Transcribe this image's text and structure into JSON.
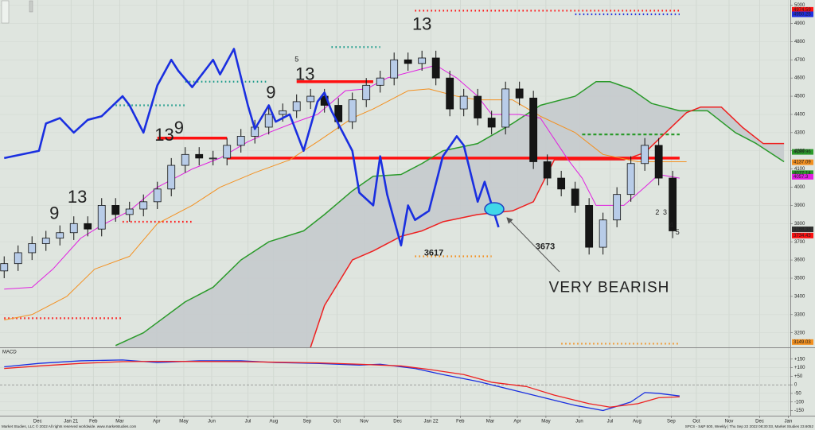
{
  "chart_data": [
    {
      "type": "candlestick",
      "ylim": [
        3120,
        5020
      ],
      "yticks": [
        3200,
        3300,
        3400,
        3500,
        3600,
        3700,
        3800,
        3900,
        4000,
        4100,
        4200,
        4300,
        4400,
        4500,
        4600,
        4700,
        4800,
        4900,
        5000
      ],
      "grid": true,
      "up_color": "#b8cce8",
      "down_color": "#151515",
      "candles": {
        "x": [
          0,
          2,
          4,
          6,
          8,
          10,
          12,
          14,
          16,
          18,
          20,
          22,
          24,
          26,
          28,
          30,
          32,
          34,
          36,
          38,
          40,
          42,
          44,
          46,
          48,
          50,
          52,
          54,
          56,
          58,
          60,
          62,
          64,
          66,
          68,
          70,
          72,
          74,
          76,
          78,
          80,
          82,
          84,
          86,
          88,
          90,
          92,
          94,
          96
        ],
        "open": [
          3540,
          3580,
          3640,
          3690,
          3720,
          3750,
          3800,
          3770,
          3900,
          3850,
          3880,
          3920,
          3990,
          4120,
          4180,
          4160,
          4160,
          4230,
          4280,
          4330,
          4400,
          4420,
          4470,
          4500,
          4450,
          4360,
          4480,
          4560,
          4600,
          4700,
          4680,
          4710,
          4600,
          4430,
          4500,
          4380,
          4330,
          4540,
          4490,
          4140,
          4050,
          3990,
          3900,
          3670,
          3820,
          3960,
          4130,
          4230,
          4050
        ],
        "high": [
          3620,
          3680,
          3730,
          3760,
          3790,
          3840,
          3840,
          3940,
          3940,
          3920,
          3960,
          4030,
          4160,
          4220,
          4220,
          4200,
          4270,
          4320,
          4370,
          4440,
          4460,
          4510,
          4540,
          4540,
          4490,
          4520,
          4600,
          4640,
          4740,
          4740,
          4750,
          4750,
          4640,
          4540,
          4540,
          4420,
          4580,
          4580,
          4530,
          4180,
          4090,
          4030,
          3940,
          3860,
          4000,
          4170,
          4270,
          4270,
          4090
        ],
        "low": [
          3500,
          3540,
          3600,
          3650,
          3680,
          3710,
          3730,
          3730,
          3810,
          3810,
          3840,
          3880,
          3950,
          4080,
          4120,
          4120,
          4120,
          4190,
          4240,
          4290,
          4360,
          4380,
          4430,
          4410,
          4320,
          4320,
          4440,
          4520,
          4560,
          4640,
          4640,
          4560,
          4390,
          4390,
          4340,
          4290,
          4290,
          4450,
          4100,
          4010,
          3950,
          3860,
          3630,
          3630,
          3780,
          3920,
          4090,
          4010,
          3720
        ],
        "close": [
          3580,
          3640,
          3690,
          3720,
          3750,
          3800,
          3770,
          3900,
          3850,
          3880,
          3920,
          3990,
          4120,
          4180,
          4160,
          4160,
          4230,
          4280,
          4330,
          4400,
          4420,
          4470,
          4500,
          4450,
          4360,
          4480,
          4560,
          4600,
          4700,
          4680,
          4710,
          4600,
          4430,
          4500,
          4380,
          4330,
          4540,
          4490,
          4140,
          4050,
          3990,
          3900,
          3670,
          3820,
          3960,
          4130,
          4230,
          4050,
          3760
        ]
      },
      "series": [
        {
          "color": "#1a2fe0",
          "width": "thick",
          "x": [
            0,
            5,
            6,
            8,
            10,
            12,
            14,
            17,
            18,
            20,
            22,
            24,
            25,
            27,
            30,
            31,
            33,
            35,
            36,
            38,
            39,
            41,
            43,
            45,
            46,
            47,
            50,
            51,
            53,
            54,
            55,
            57,
            58,
            59,
            61,
            63,
            65,
            66,
            68,
            69,
            71
          ],
          "values": [
            4160,
            4200,
            4350,
            4380,
            4300,
            4370,
            4390,
            4500,
            4450,
            4300,
            4560,
            4700,
            4640,
            4550,
            4700,
            4620,
            4760,
            4450,
            4320,
            4450,
            4360,
            4400,
            4200,
            4470,
            4520,
            4420,
            4200,
            3970,
            3900,
            4170,
            3960,
            3680,
            3900,
            3820,
            3870,
            4170,
            4280,
            4230,
            3920,
            4030,
            3780
          ]
        },
        {
          "color": "#2a9a2a",
          "width": "normal",
          "x": [
            16,
            20,
            26,
            30,
            34,
            38,
            43,
            46,
            50,
            53,
            57,
            60,
            63,
            68,
            73,
            77,
            82,
            85,
            87,
            90,
            93,
            97,
            101,
            105,
            108,
            112
          ],
          "values": [
            3130,
            3200,
            3370,
            3450,
            3600,
            3700,
            3760,
            3850,
            3980,
            4060,
            4070,
            4130,
            4200,
            4240,
            4350,
            4450,
            4500,
            4580,
            4580,
            4540,
            4460,
            4420,
            4420,
            4300,
            4240,
            4140
          ]
        },
        {
          "color": "#ee2020",
          "width": "normal",
          "x": [
            44,
            46,
            50,
            53,
            57,
            60,
            63,
            68,
            73,
            76,
            79,
            84,
            89,
            92,
            95,
            98,
            100,
            103,
            106,
            109,
            112
          ],
          "values": [
            3120,
            3350,
            3600,
            3650,
            3730,
            3760,
            3810,
            3850,
            3870,
            3920,
            4150,
            4150,
            4150,
            4190,
            4300,
            4410,
            4440,
            4440,
            4330,
            4240,
            4240
          ]
        },
        {
          "color": "#f39020",
          "width": "thin",
          "x": [
            0,
            4,
            9,
            13,
            18,
            22,
            27,
            31,
            36,
            41,
            45,
            50,
            53,
            58,
            61,
            65,
            68,
            73,
            77,
            82,
            86,
            91,
            95,
            98
          ],
          "values": [
            3270,
            3300,
            3400,
            3550,
            3620,
            3800,
            3900,
            4000,
            4080,
            4150,
            4250,
            4380,
            4430,
            4530,
            4540,
            4500,
            4480,
            4480,
            4390,
            4300,
            4180,
            4140,
            4140,
            4140
          ]
        },
        {
          "color": "#e020e0",
          "width": "thin",
          "x": [
            0,
            4,
            7,
            11,
            14,
            18,
            22,
            27,
            31,
            35,
            38,
            42,
            45,
            49,
            52,
            55,
            59,
            62,
            65,
            68,
            70,
            74,
            77,
            81,
            83,
            85,
            89,
            92,
            94,
            97
          ],
          "values": [
            3440,
            3450,
            3550,
            3720,
            3790,
            3870,
            4000,
            4100,
            4160,
            4250,
            4300,
            4360,
            4400,
            4530,
            4540,
            4600,
            4640,
            4670,
            4600,
            4500,
            4400,
            4400,
            4380,
            4150,
            4050,
            3900,
            3900,
            4000,
            4070,
            4050
          ]
        }
      ],
      "fill_between": [
        1,
        2
      ],
      "fill_color": "#c4c9cc",
      "levels": [
        {
          "value": 4160,
          "x": [
            32,
            97
          ],
          "color": "#ff1010",
          "style": "solid"
        },
        {
          "value": 4580,
          "x": [
            42,
            53
          ],
          "color": "#ff1010",
          "style": "solid"
        },
        {
          "value": 4270,
          "x": [
            22,
            32
          ],
          "color": "#ff1010",
          "style": "solid"
        },
        {
          "value": 3280,
          "x": [
            0,
            17
          ],
          "color": "#ff1010",
          "style": "dotted"
        },
        {
          "value": 3810,
          "x": [
            17,
            27
          ],
          "color": "#ff1010",
          "style": "dotted"
        },
        {
          "value": 4970,
          "x": [
            59,
            97
          ],
          "color": "#ff1010",
          "style": "dotted"
        },
        {
          "value": 4950,
          "x": [
            82,
            97
          ],
          "color": "#2030e0",
          "style": "dotted"
        },
        {
          "value": 4450,
          "x": [
            16,
            26
          ],
          "color": "#1a9a8a",
          "style": "dotted"
        },
        {
          "value": 4580,
          "x": [
            26,
            38
          ],
          "color": "#1a9a8a",
          "style": "dotted"
        },
        {
          "value": 4770,
          "x": [
            47,
            54
          ],
          "color": "#1a9a8a",
          "style": "dotted"
        },
        {
          "value": 3620,
          "x": [
            59,
            70
          ],
          "color": "#f39020",
          "style": "dotted"
        },
        {
          "value": 3140,
          "x": [
            80,
            97
          ],
          "color": "#f39020",
          "style": "dotted"
        },
        {
          "value": 4290,
          "x": [
            83,
            97
          ],
          "color": "#2a9a2a",
          "style": "dashed"
        }
      ],
      "annotations": [
        {
          "text": "13",
          "x": 10.5,
          "y": 3940,
          "color": "#ff1010",
          "size": "large"
        },
        {
          "text": "13",
          "x": 23,
          "y": 4280,
          "color": "#ff1010",
          "size": "large"
        },
        {
          "text": "13",
          "x": 43.2,
          "y": 4615,
          "color": "#ff1010",
          "size": "large"
        },
        {
          "text": "13",
          "x": 60,
          "y": 4890,
          "color": "#ff1010",
          "size": "large"
        },
        {
          "text": "9",
          "x": 7.2,
          "y": 3850,
          "color": "#1a2fe0",
          "size": "large"
        },
        {
          "text": "9",
          "x": 25.1,
          "y": 4320,
          "color": "#1a2fe0",
          "size": "large"
        },
        {
          "text": "9",
          "x": 38.3,
          "y": 4515,
          "color": "#1a2fe0",
          "size": "large"
        },
        {
          "text": "5",
          "x": 42,
          "y": 4700,
          "color": "#ff1010",
          "size": "small"
        },
        {
          "text": "2",
          "x": 93.8,
          "y": 3860,
          "color": "#1a2fe0",
          "size": "small"
        },
        {
          "text": "3",
          "x": 94.9,
          "y": 3860,
          "color": "#1a2fe0",
          "size": "small"
        },
        {
          "text": "4",
          "x": 95.8,
          "y": 3790,
          "color": "#1a2fe0",
          "size": "small"
        },
        {
          "text": "5",
          "x": 96.7,
          "y": 3750,
          "color": "#1a2fe0",
          "size": "small"
        },
        {
          "text": "3617",
          "x": 61.7,
          "y": 3637,
          "color": "#f39020",
          "size": "medium"
        },
        {
          "text": "3673",
          "x": 77.7,
          "y": 3672,
          "color": "#e01010",
          "size": "medium"
        },
        {
          "text": "VERY BEARISH",
          "x": 86.9,
          "y": 3445,
          "color": "#1a2fe0",
          "size": "huge"
        }
      ],
      "price_labels": [
        {
          "value": 4974.59,
          "label": "4974.59",
          "color": "#ff1010"
        },
        {
          "value": 4950.25,
          "label": "4950.25",
          "color": "#2030e0"
        },
        {
          "value": 4193.96,
          "label": "4193.96",
          "color": "#2a9a2a"
        },
        {
          "value": 4137.09,
          "label": "4137.09",
          "color": "#f39020"
        },
        {
          "value": 4077.14,
          "label": "4077.14",
          "color": "#2a9a2a"
        },
        {
          "value": 4057.3,
          "label": "4057.3",
          "color": "#e020e0"
        },
        {
          "value": 3768.38,
          "label": "3768.38",
          "color": "#303030"
        },
        {
          "value": 3734.43,
          "label": "3734.43",
          "color": "#ff1010"
        },
        {
          "value": 3149.03,
          "label": "3149.03",
          "color": "#f39020"
        }
      ]
    },
    {
      "type": "line",
      "title": "MACD",
      "xlim": [
        -0.6,
        112.9
      ],
      "xticks": [
        {
          "value": 4.8,
          "label": "Dec"
        },
        {
          "value": 9.6,
          "label": "Jan 21"
        },
        {
          "value": 12.8,
          "label": "Feb"
        },
        {
          "value": 16.6,
          "label": "Mar"
        },
        {
          "value": 21.9,
          "label": "Apr"
        },
        {
          "value": 25.8,
          "label": "May"
        },
        {
          "value": 29.8,
          "label": "Jun"
        },
        {
          "value": 35,
          "label": "Jul"
        },
        {
          "value": 38.7,
          "label": "Aug"
        },
        {
          "value": 43.5,
          "label": "Sep"
        },
        {
          "value": 47.8,
          "label": "Oct"
        },
        {
          "value": 51.7,
          "label": "Nov"
        },
        {
          "value": 56.5,
          "label": "Dec"
        },
        {
          "value": 61.3,
          "label": "Jan 22"
        },
        {
          "value": 65.5,
          "label": "Feb"
        },
        {
          "value": 69.8,
          "label": "Mar"
        },
        {
          "value": 73.7,
          "label": "Apr"
        },
        {
          "value": 77.8,
          "label": "May"
        },
        {
          "value": 82.6,
          "label": "Jun"
        },
        {
          "value": 87,
          "label": "Jul"
        },
        {
          "value": 90.9,
          "label": "Aug"
        },
        {
          "value": 95.8,
          "label": "Sep"
        },
        {
          "value": 99.4,
          "label": "Oct"
        },
        {
          "value": 104.1,
          "label": "Nov"
        },
        {
          "value": 108.5,
          "label": "Dec"
        },
        {
          "value": 112.6,
          "label": "Jan"
        }
      ],
      "ylim": [
        -180,
        200
      ],
      "yticks": [
        {
          "value": 150,
          "label": "+150"
        },
        {
          "value": 100,
          "label": "+100"
        },
        {
          "value": 50,
          "label": "+50"
        },
        0,
        -50,
        -100,
        -150
      ],
      "series": [
        {
          "color": "#1a2fe0",
          "x": [
            0,
            5,
            11,
            17,
            22,
            28,
            34,
            39,
            45,
            51,
            54,
            59,
            63,
            68,
            73,
            77,
            82,
            86,
            90,
            92,
            94,
            97
          ],
          "values": [
            105,
            125,
            140,
            145,
            130,
            140,
            140,
            130,
            125,
            115,
            120,
            95,
            60,
            20,
            -30,
            -70,
            -120,
            -150,
            -100,
            -45,
            -50,
            -65
          ]
        },
        {
          "color": "#ee2020",
          "x": [
            0,
            5,
            11,
            17,
            22,
            28,
            34,
            39,
            45,
            51,
            57,
            61,
            66,
            70,
            75,
            79,
            84,
            87,
            91,
            94,
            97
          ],
          "values": [
            95,
            110,
            125,
            135,
            137,
            136,
            135,
            132,
            128,
            120,
            110,
            90,
            60,
            15,
            -10,
            -60,
            -110,
            -130,
            -110,
            -75,
            -70
          ]
        }
      ]
    }
  ],
  "footer_left": "Market Studies, LLC © 2022 All rights reserved worldwide. www.marketstudies.com",
  "footer_right": "SPCS - S&P 500, Weekly | Thu Sep 22 2022 08:30:03, Market Studies 23.6052"
}
